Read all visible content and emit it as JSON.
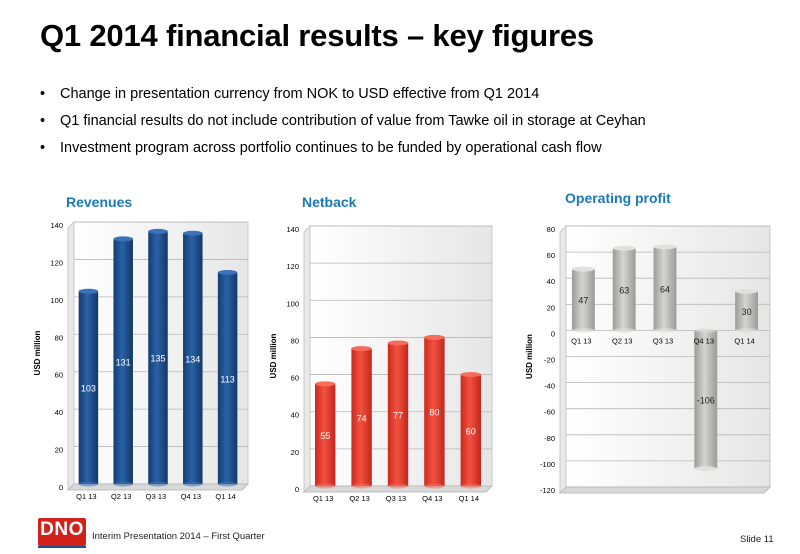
{
  "slide": {
    "title": "Q1 2014 financial results – key figures",
    "bullets": [
      "Change in presentation currency from NOK to USD effective from Q1 2014",
      "Q1 financial results do not include contribution of value from Tawke oil in storage at Ceyhan",
      "Investment program across portfolio continues to be funded by operational cash flow"
    ],
    "bullet_symbol": "•"
  },
  "footer": {
    "logo_text": "DNO",
    "presentation": "Interim Presentation 2014 – First Quarter",
    "slide_number": "Slide 11"
  },
  "colors": {
    "title_blue": "#1a7ab8",
    "revenue_bar": "#1d4e8c",
    "netback_bar": "#e8362a",
    "profit_bar": "#b3b3b1",
    "logo_red": "#d2201b"
  },
  "chart_data": [
    {
      "type": "bar",
      "title": "Revenues",
      "ylabel": "USD million",
      "categories": [
        "Q1 13",
        "Q2 13",
        "Q3 13",
        "Q4 13",
        "Q1 14"
      ],
      "values": [
        103,
        131,
        135,
        134,
        113
      ],
      "ylim": [
        0,
        140
      ],
      "yticks": [
        0,
        20,
        40,
        60,
        80,
        100,
        120,
        140
      ],
      "grid": true,
      "legend": "none",
      "style": "3d-cylinder"
    },
    {
      "type": "bar",
      "title": "Netback",
      "ylabel": "USD million",
      "categories": [
        "Q1 13",
        "Q2 13",
        "Q3 13",
        "Q4 13",
        "Q1 14"
      ],
      "values": [
        55,
        74,
        77,
        80,
        60
      ],
      "ylim": [
        0,
        140
      ],
      "yticks": [
        0,
        20,
        40,
        60,
        80,
        100,
        120,
        140
      ],
      "grid": true,
      "legend": "none",
      "style": "3d-cylinder"
    },
    {
      "type": "bar",
      "title": "Operating profit",
      "ylabel": "USD million",
      "categories": [
        "Q1 13",
        "Q2 13",
        "Q3 13",
        "Q4 13",
        "Q1 14"
      ],
      "values": [
        47,
        63,
        64,
        -106,
        30
      ],
      "ylim": [
        -120,
        80
      ],
      "yticks": [
        -120,
        -100,
        -80,
        -60,
        -40,
        -20,
        0,
        20,
        40,
        60,
        80
      ],
      "grid": true,
      "legend": "none",
      "style": "3d-cylinder"
    }
  ]
}
